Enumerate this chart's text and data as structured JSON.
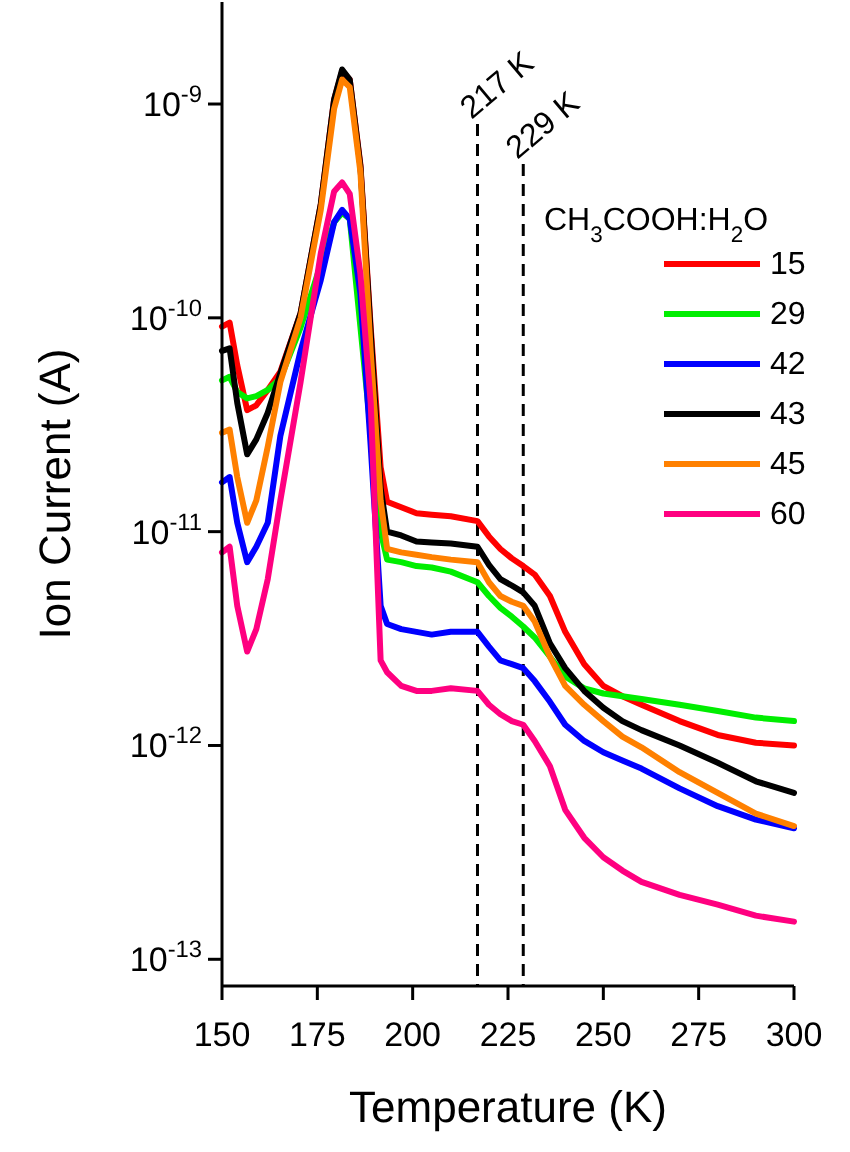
{
  "chart_data": {
    "type": "line",
    "xlabel": "Temperature (K)",
    "ylabel": "Ion Current (A)",
    "legend_title": "CH$_{3}$COOH:H$_{2}$O",
    "legend": "top right",
    "log": true,
    "line_style": "solid",
    "marker": "none",
    "grid": false,
    "xlim": [
      150,
      300
    ],
    "xticks": [
      150,
      175,
      200,
      225,
      250,
      275,
      300
    ],
    "ylim": [
      7.5e-14,
      3e-09
    ],
    "yticks": [
      {
        "value": 1e-13,
        "label": "10$^{-13}$"
      },
      {
        "value": 1e-12,
        "label": "10$^{-12}$"
      },
      {
        "value": 1e-11,
        "label": "10$^{-11}$"
      },
      {
        "value": 1e-10,
        "label": "10$^{-10}$"
      },
      {
        "value": 1e-09,
        "label": "10$^{-9}$"
      }
    ],
    "x": [
      150,
      152,
      154,
      156.6,
      159,
      162,
      165.3,
      170.6,
      175.9,
      179.4,
      181.5,
      183.5,
      186.3,
      189,
      191.6,
      193.3,
      197,
      201,
      205,
      210,
      217,
      220,
      223,
      226,
      229,
      232,
      236,
      240,
      245,
      250,
      255,
      260,
      270,
      280,
      290,
      300
    ],
    "ref_lines": [
      {
        "axis": "x",
        "value": 217,
        "label": "217 K",
        "color": "#000000",
        "line_style": "dashed"
      },
      {
        "axis": "x",
        "value": 229,
        "label": "229 K",
        "color": "#000000",
        "line_style": "dashed"
      }
    ],
    "series": [
      {
        "name": "15",
        "color": "#ff0000",
        "values": [
          9.1e-11,
          9.5e-11,
          6e-11,
          3.7e-11,
          3.9e-11,
          4.6e-11,
          5.6e-11,
          1.05e-10,
          3.4e-10,
          1.05e-09,
          1.42e-09,
          1.3e-09,
          5.2e-10,
          9e-11,
          2e-11,
          1.38e-11,
          1.3e-11,
          1.22e-11,
          1.2e-11,
          1.18e-11,
          1.12e-11,
          9.5e-12,
          8.3e-12,
          7.5e-12,
          6.9e-12,
          6.3e-12,
          5e-12,
          3.4e-12,
          2.4e-12,
          1.9e-12,
          1.7e-12,
          1.55e-12,
          1.3e-12,
          1.12e-12,
          1.03e-12,
          1e-12
        ]
      },
      {
        "name": "29",
        "color": "#00ee00",
        "values": [
          5.1e-11,
          5.3e-11,
          4.5e-11,
          4.2e-11,
          4.3e-11,
          4.6e-11,
          5.2e-11,
          9e-11,
          null,
          2.8e-10,
          3.1e-10,
          2.9e-10,
          null,
          null,
          1e-11,
          7.4e-12,
          7.2e-12,
          6.9e-12,
          6.8e-12,
          6.5e-12,
          5.8e-12,
          5e-12,
          4.4e-12,
          4e-12,
          3.6e-12,
          3.2e-12,
          2.6e-12,
          2.1e-12,
          1.85e-12,
          1.75e-12,
          1.7e-12,
          1.65e-12,
          1.55e-12,
          1.45e-12,
          1.35e-12,
          1.3e-12
        ]
      },
      {
        "name": "42",
        "color": "#0000ff",
        "values": [
          1.7e-11,
          1.8e-11,
          1.1e-11,
          7.2e-12,
          8.5e-12,
          1.1e-11,
          2.8e-11,
          7e-11,
          1.5e-10,
          2.8e-10,
          3.2e-10,
          2.9e-10,
          1.3e-10,
          2.5e-11,
          4.5e-12,
          3.7e-12,
          3.5e-12,
          3.4e-12,
          3.3e-12,
          3.4e-12,
          3.4e-12,
          2.9e-12,
          2.5e-12,
          2.4e-12,
          2.3e-12,
          2e-12,
          1.6e-12,
          1.25e-12,
          1.05e-12,
          9.3e-13,
          8.5e-13,
          7.8e-13,
          6.3e-13,
          5.2e-13,
          4.5e-13,
          4.1e-13
        ]
      },
      {
        "name": "43",
        "color": "#000000",
        "values": [
          7e-11,
          7.2e-11,
          4e-11,
          2.3e-11,
          2.7e-11,
          3.6e-11,
          5.5e-11,
          1.05e-10,
          3.4e-10,
          1.05e-09,
          1.45e-09,
          1.3e-09,
          5.1e-10,
          8.5e-11,
          1.6e-11,
          1e-11,
          9.6e-12,
          9e-12,
          8.9e-12,
          8.8e-12,
          8.5e-12,
          7e-12,
          6e-12,
          5.6e-12,
          5.2e-12,
          4.5e-12,
          3e-12,
          2.3e-12,
          1.8e-12,
          1.5e-12,
          1.3e-12,
          1.18e-12,
          1e-12,
          8.3e-13,
          6.8e-13,
          6e-13
        ]
      },
      {
        "name": "45",
        "color": "#ff8000",
        "values": [
          2.9e-11,
          3e-11,
          1.8e-11,
          1.1e-11,
          1.4e-11,
          2.5e-11,
          5e-11,
          1e-10,
          3.2e-10,
          9.5e-10,
          1.3e-09,
          1.2e-09,
          4.8e-10,
          7e-11,
          1.4e-11,
          8.3e-12,
          8e-12,
          7.8e-12,
          7.6e-12,
          7.4e-12,
          7.2e-12,
          5.8e-12,
          5e-12,
          4.7e-12,
          4.5e-12,
          3.8e-12,
          2.6e-12,
          1.9e-12,
          1.55e-12,
          1.3e-12,
          1.1e-12,
          9.8e-13,
          7.5e-13,
          6e-13,
          4.8e-13,
          4.2e-13
        ]
      },
      {
        "name": "60",
        "color": "#ff0080",
        "values": [
          8e-12,
          8.5e-12,
          4.5e-12,
          2.75e-12,
          3.5e-12,
          6e-12,
          1.4e-11,
          5e-11,
          2e-10,
          3.9e-10,
          4.3e-10,
          3.8e-10,
          1.6e-10,
          4e-11,
          2.5e-12,
          2.2e-12,
          1.9e-12,
          1.8e-12,
          1.8e-12,
          1.85e-12,
          1.8e-12,
          1.55e-12,
          1.4e-12,
          1.3e-12,
          1.25e-12,
          1.05e-12,
          8e-13,
          5e-13,
          3.7e-13,
          3e-13,
          2.6e-13,
          2.3e-13,
          2e-13,
          1.8e-13,
          1.6e-13,
          1.5e-13
        ]
      }
    ]
  }
}
